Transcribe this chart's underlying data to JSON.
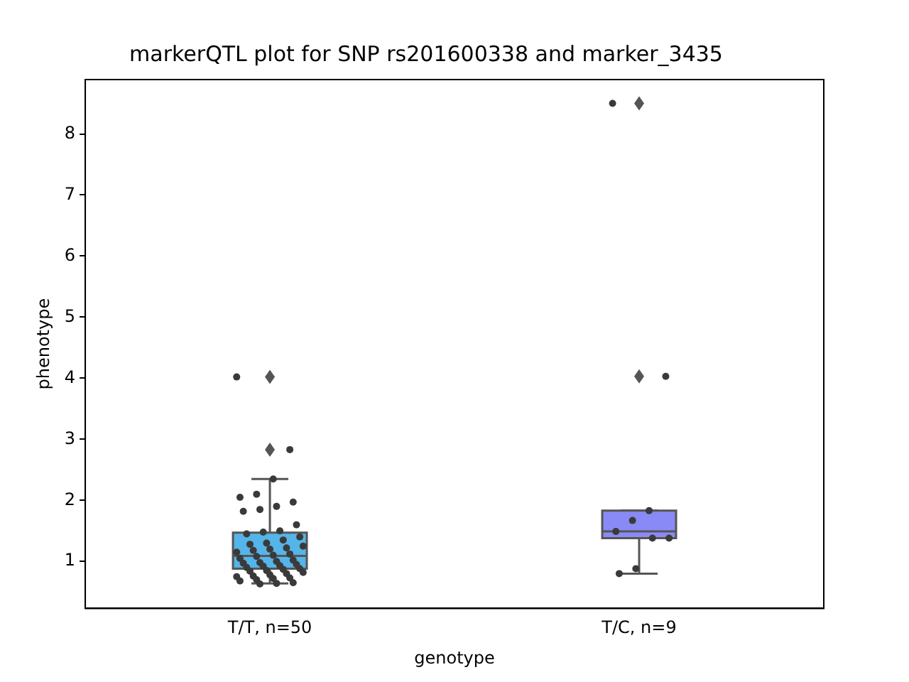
{
  "chart_data": {
    "type": "box",
    "title": "markerQTL plot for SNP rs201600338 and marker_3435",
    "xlabel": "genotype",
    "ylabel": "phenotype",
    "categories": [
      "T/T, n=50",
      "T/C, n=9"
    ],
    "ylim": [
      0.23,
      8.89
    ],
    "yticks": [
      1,
      2,
      3,
      4,
      5,
      6,
      7,
      8
    ],
    "grid": false,
    "legend": false,
    "series": [
      {
        "type": "box",
        "colors": [
          "#55b4e8",
          "#8a8af6"
        ],
        "boxes": [
          {
            "low": 0.64,
            "q1": 0.88,
            "median": 1.09,
            "q3": 1.47,
            "high": 2.35,
            "outliers": [
              2.83,
              4.02
            ]
          },
          {
            "low": 0.8,
            "q1": 1.38,
            "median": 1.49,
            "q3": 1.83,
            "high": 1.83,
            "outliers": [
              4.03,
              8.5
            ]
          }
        ]
      },
      {
        "type": "scatter",
        "color": "#3a3a3a",
        "marker": "circle",
        "x": [
          "T/T, n=50",
          "T/T, n=50",
          "T/T, n=50",
          "T/T, n=50",
          "T/T, n=50",
          "T/T, n=50",
          "T/T, n=50",
          "T/T, n=50",
          "T/T, n=50",
          "T/T, n=50",
          "T/T, n=50",
          "T/T, n=50",
          "T/T, n=50",
          "T/T, n=50",
          "T/T, n=50",
          "T/T, n=50",
          "T/T, n=50",
          "T/T, n=50",
          "T/T, n=50",
          "T/T, n=50",
          "T/T, n=50",
          "T/T, n=50",
          "T/T, n=50",
          "T/T, n=50",
          "T/T, n=50",
          "T/T, n=50",
          "T/T, n=50",
          "T/T, n=50",
          "T/T, n=50",
          "T/T, n=50",
          "T/T, n=50",
          "T/T, n=50",
          "T/T, n=50",
          "T/T, n=50",
          "T/T, n=50",
          "T/T, n=50",
          "T/T, n=50",
          "T/T, n=50",
          "T/T, n=50",
          "T/T, n=50",
          "T/T, n=50",
          "T/T, n=50",
          "T/T, n=50",
          "T/T, n=50",
          "T/T, n=50",
          "T/T, n=50",
          "T/T, n=50",
          "T/T, n=50",
          "T/T, n=50",
          "T/T, n=50",
          "T/C, n=9",
          "T/C, n=9",
          "T/C, n=9",
          "T/C, n=9",
          "T/C, n=9",
          "T/C, n=9",
          "T/C, n=9",
          "T/C, n=9",
          "T/C, n=9"
        ],
        "values": [
          4.02,
          2.83,
          2.35,
          2.1,
          2.05,
          1.97,
          1.9,
          1.85,
          1.82,
          1.6,
          1.5,
          1.48,
          1.45,
          1.4,
          1.35,
          1.3,
          1.28,
          1.25,
          1.22,
          1.2,
          1.18,
          1.15,
          1.12,
          1.1,
          1.08,
          1.05,
          1.02,
          1.0,
          0.98,
          0.97,
          0.95,
          0.93,
          0.92,
          0.9,
          0.88,
          0.87,
          0.85,
          0.84,
          0.82,
          0.8,
          0.78,
          0.76,
          0.75,
          0.73,
          0.72,
          0.7,
          0.68,
          0.65,
          0.64,
          0.63,
          8.5,
          4.03,
          1.83,
          1.67,
          1.49,
          1.38,
          1.38,
          0.88,
          0.8
        ]
      }
    ]
  }
}
